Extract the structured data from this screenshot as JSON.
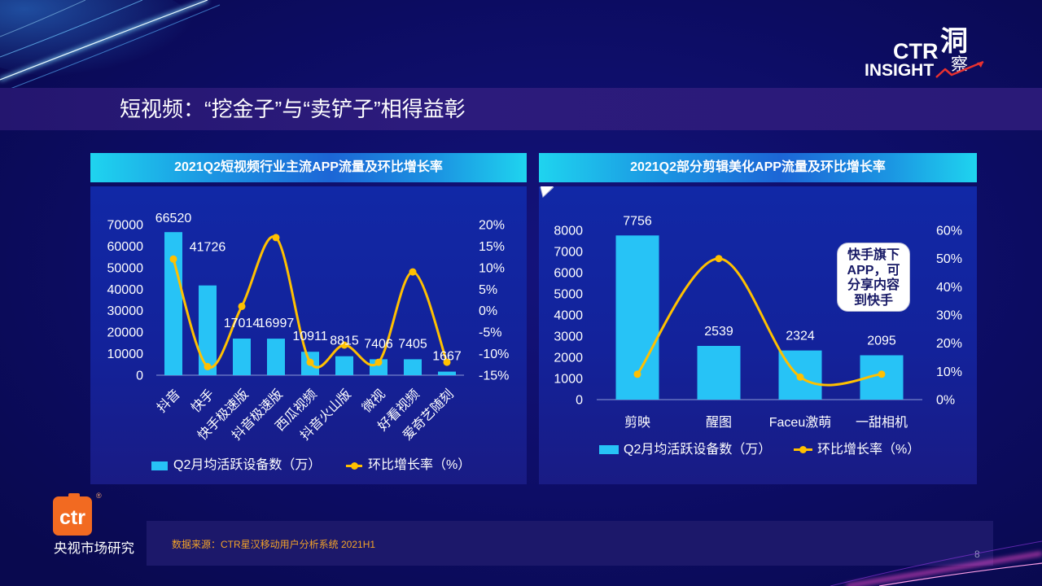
{
  "slide": {
    "title": "短视频：“挖金子”与“卖铲子”相得益彰",
    "source": "数据来源：CTR星汉移动用户分析系统 2021H1",
    "page_number": "8"
  },
  "logos": {
    "insight": {
      "ctr": "CTR",
      "dong": "洞",
      "cha": "察",
      "insight": "INSIGHT"
    },
    "brand": {
      "mark": "ctr",
      "registered": "®",
      "name": "央视市场研究"
    }
  },
  "colors": {
    "bar": "#27C3F6",
    "line": "#FFC000",
    "source_text": "#F4A428",
    "brand_orange": "#F26A21",
    "callout_text": "#181A66",
    "axis_line": "#8D9AD8"
  },
  "chart_data": [
    {
      "type": "bar",
      "title": "2021Q2短视频行业主流APP流量及环比增长率",
      "categories": [
        "抖音",
        "快手",
        "快手极速版",
        "抖音极速版",
        "西瓜视频",
        "抖音火山版",
        "微视",
        "好看视频",
        "爱奇艺随刻"
      ],
      "series": [
        {
          "name": "Q2月均活跃设备数（万）",
          "type": "bar",
          "axis": "left",
          "values": [
            66520,
            41726,
            17014,
            16997,
            10911,
            8815,
            7406,
            7405,
            1667
          ]
        },
        {
          "name": "环比增长率（%）",
          "type": "line",
          "axis": "right",
          "values": [
            12,
            -13,
            1,
            17,
            -12,
            -8,
            -12,
            9,
            -12
          ]
        }
      ],
      "y_left": {
        "min": 0,
        "max": 70000,
        "step": 10000
      },
      "y_right": {
        "min": -15,
        "max": 20,
        "step": 5,
        "suffix": "%"
      },
      "data_labels": "bar values",
      "legend_position": "bottom",
      "grid": false
    },
    {
      "type": "bar",
      "title": "2021Q2部分剪辑美化APP流量及环比增长率",
      "categories": [
        "剪映",
        "醒图",
        "Faceu激萌",
        "一甜相机"
      ],
      "series": [
        {
          "name": "Q2月均活跃设备数（万）",
          "type": "bar",
          "axis": "left",
          "values": [
            7756,
            2539,
            2324,
            2095
          ]
        },
        {
          "name": "环比增长率（%）",
          "type": "line",
          "axis": "right",
          "values": [
            9,
            50,
            8,
            9
          ]
        }
      ],
      "y_left": {
        "min": 0,
        "max": 8000,
        "step": 1000
      },
      "y_right": {
        "min": 0,
        "max": 60,
        "step": 10,
        "suffix": "%"
      },
      "data_labels": "bar values",
      "legend_position": "bottom",
      "grid": false,
      "annotation": {
        "lines": [
          "快手旗下",
          "APP，可",
          "分享内容",
          "到快手"
        ]
      }
    }
  ]
}
